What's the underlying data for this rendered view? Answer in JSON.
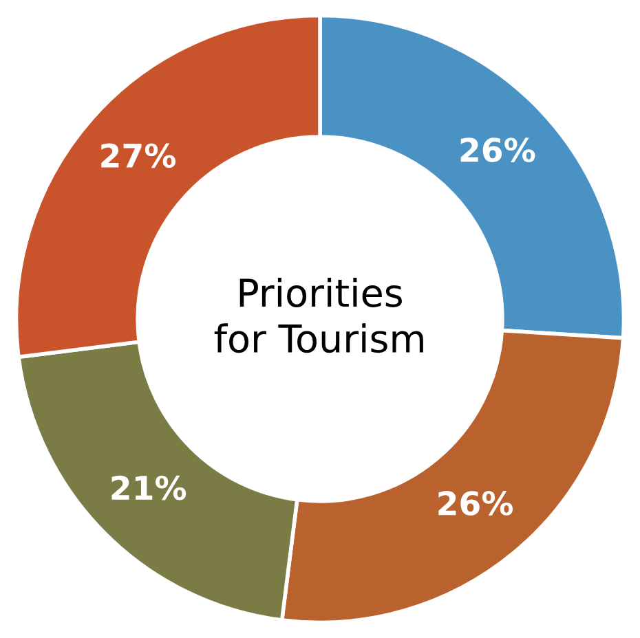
{
  "chart_data": {
    "type": "donut",
    "title": "Priorities\nfor Tourism",
    "categories": [
      null,
      null,
      null,
      null
    ],
    "values": [
      26,
      26,
      21,
      27
    ],
    "colors": [
      "#4a92c4",
      "#b9622d",
      "#7a7b45",
      "#c9532b"
    ],
    "value_labels": [
      "26%",
      "26%",
      "21%",
      "27%"
    ]
  }
}
